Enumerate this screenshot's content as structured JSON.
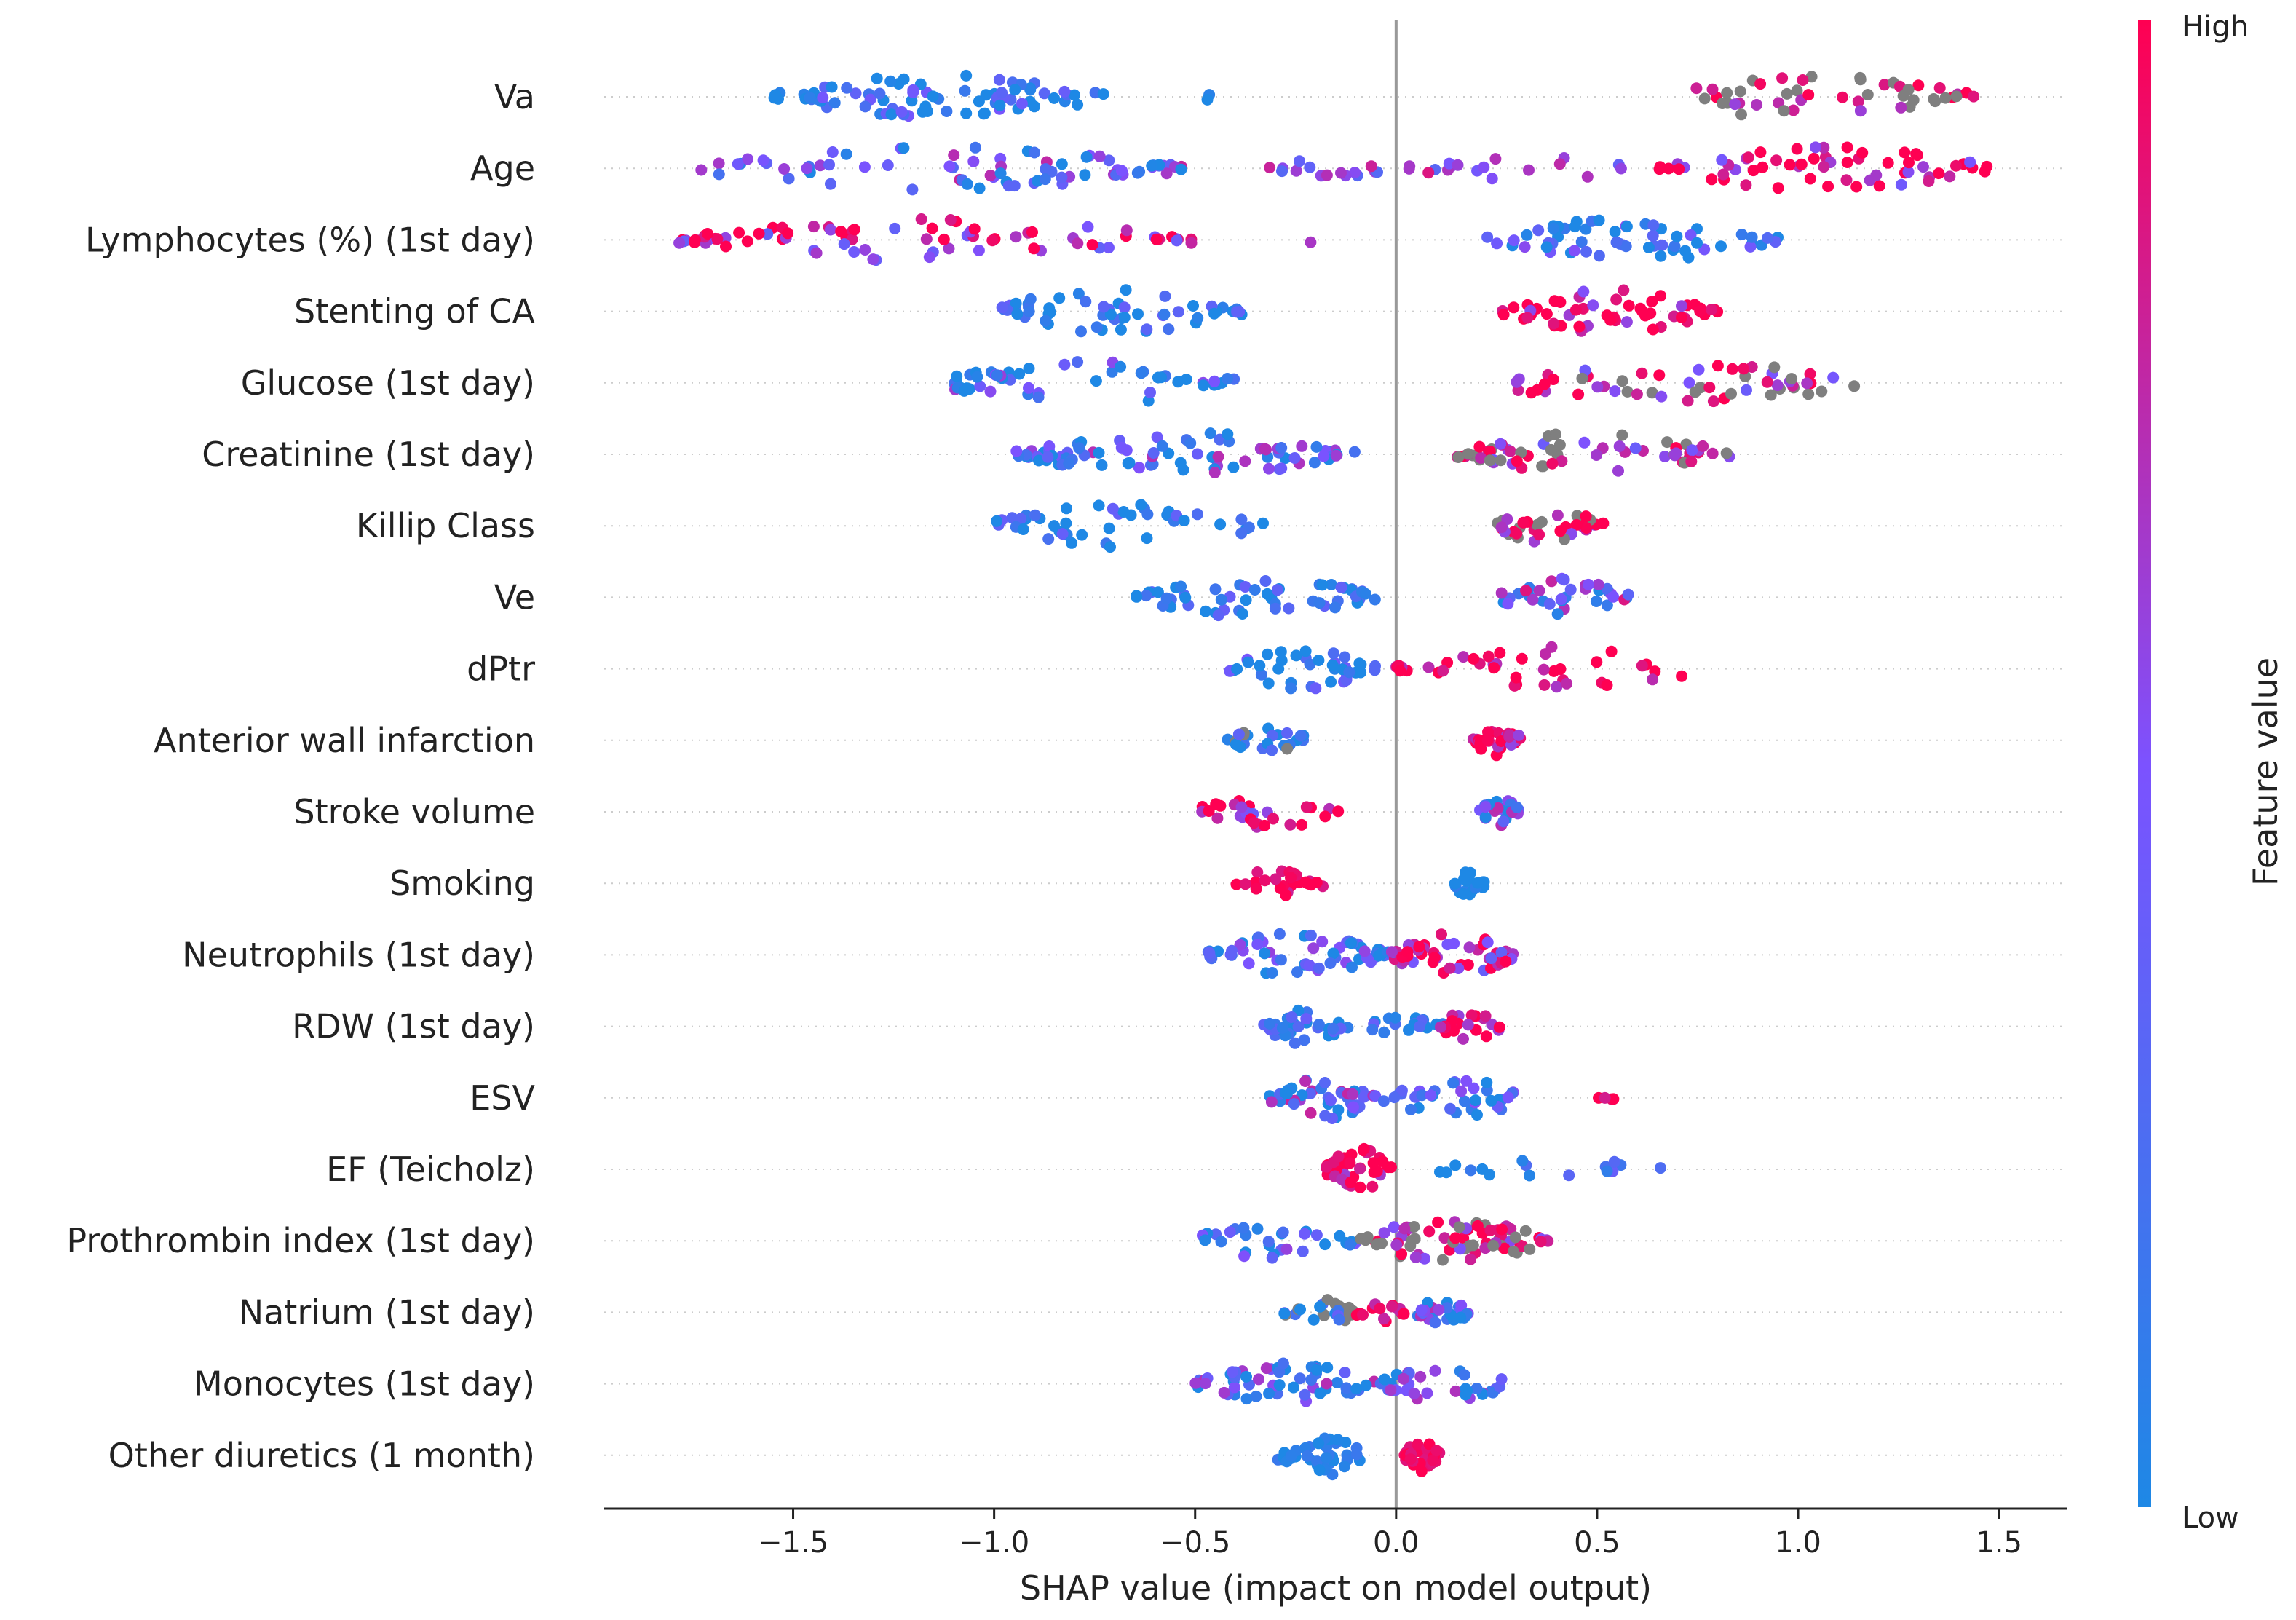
{
  "chart_data": {
    "type": "scatter",
    "subtype": "shap-beeswarm-summary",
    "xlabel": "SHAP value (impact on model output)",
    "xlim": [
      -1.97,
      1.67
    ],
    "xticks": [
      {
        "value": -1.5,
        "label": "−1.5"
      },
      {
        "value": -1.0,
        "label": "−1.0"
      },
      {
        "value": -0.5,
        "label": "−0.5"
      },
      {
        "value": 0.0,
        "label": "0.0"
      },
      {
        "value": 0.5,
        "label": "0.5"
      },
      {
        "value": 1.0,
        "label": "1.0"
      },
      {
        "value": 1.5,
        "label": "1.5"
      }
    ],
    "zero_line": 0,
    "colorbar": {
      "title": "Feature value",
      "high_label": "High",
      "low_label": "Low",
      "low_color": "#1e88e5",
      "high_color": "#ff0052",
      "missing_color": "#7f7f7f"
    },
    "features": [
      {
        "name": "Va",
        "clusters": [
          {
            "lo": -1.55,
            "hi": -0.72,
            "v": 0.02,
            "n": 80,
            "c": "b",
            "spread": 0.45
          },
          {
            "lo": -0.5,
            "hi": -0.46,
            "v": 0.0,
            "n": 2,
            "c": "b"
          },
          {
            "lo": 0.62,
            "hi": 1.44,
            "v": 0.85,
            "n": 48,
            "c": "gp",
            "spread": 0.25
          }
        ]
      },
      {
        "name": "Age",
        "clusters": [
          {
            "lo": -1.8,
            "hi": -0.52,
            "v": 0.35,
            "n": 75,
            "c": "m",
            "spread": 0.45
          },
          {
            "lo": -0.32,
            "hi": -0.02,
            "v": 0.5,
            "n": 15,
            "c": "m"
          },
          {
            "lo": 0.02,
            "hi": 0.62,
            "v": 0.6,
            "n": 18,
            "c": "m"
          },
          {
            "lo": 0.65,
            "hi": 1.48,
            "v": 0.92,
            "n": 60,
            "c": "p",
            "spread": 0.5
          }
        ]
      },
      {
        "name": "Lymphocytes (%) (1st day)",
        "clusters": [
          {
            "lo": -1.8,
            "hi": -0.5,
            "v": 0.85,
            "n": 80,
            "c": "p",
            "spread": 0.5
          },
          {
            "lo": -0.25,
            "hi": -0.2,
            "v": 0.7,
            "n": 1,
            "c": "p"
          },
          {
            "lo": 0.22,
            "hi": 0.95,
            "v": 0.12,
            "n": 60,
            "c": "b",
            "spread": 0.45
          }
        ]
      },
      {
        "name": "Stenting of CA",
        "clusters": [
          {
            "lo": -1.02,
            "hi": -0.38,
            "v": 0.0,
            "n": 55,
            "c": "b",
            "spread": 0.4
          },
          {
            "lo": 0.26,
            "hi": 0.8,
            "v": 1.0,
            "n": 55,
            "c": "p",
            "spread": 0.5
          }
        ]
      },
      {
        "name": "Glucose (1st day)",
        "clusters": [
          {
            "lo": -1.15,
            "hi": -0.38,
            "v": 0.2,
            "n": 50,
            "c": "b",
            "spread": 0.45
          },
          {
            "lo": 0.22,
            "hi": 1.18,
            "v": 0.75,
            "n": 55,
            "c": "gp",
            "spread": 0.35
          }
        ]
      },
      {
        "name": "Creatinine (1st day)",
        "clusters": [
          {
            "lo": -0.95,
            "hi": -0.1,
            "v": 0.25,
            "n": 85,
            "c": "b",
            "spread": 0.5
          },
          {
            "lo": 0.15,
            "hi": 0.83,
            "v": 0.75,
            "n": 65,
            "c": "gp",
            "spread": 0.35
          }
        ]
      },
      {
        "name": "Killip Class",
        "clusters": [
          {
            "lo": -1.02,
            "hi": -0.32,
            "v": 0.02,
            "n": 45,
            "c": "b",
            "spread": 0.4
          },
          {
            "lo": 0.25,
            "hi": 0.52,
            "v": 0.9,
            "n": 35,
            "c": "gp",
            "spread": 0.35
          }
        ]
      },
      {
        "name": "Ve",
        "clusters": [
          {
            "lo": -0.65,
            "hi": -0.05,
            "v": 0.05,
            "n": 55,
            "c": "b",
            "spread": 0.4
          },
          {
            "lo": 0.25,
            "hi": 0.58,
            "v": 0.4,
            "n": 35,
            "c": "m",
            "spread": 0.5
          }
        ]
      },
      {
        "name": "dPtr",
        "clusters": [
          {
            "lo": -0.42,
            "hi": -0.05,
            "v": 0.1,
            "n": 40,
            "c": "b",
            "spread": 0.4
          },
          {
            "lo": 0.0,
            "hi": 0.78,
            "v": 0.92,
            "n": 40,
            "c": "p",
            "spread": 0.3
          }
        ]
      },
      {
        "name": "Anterior wall infarction",
        "clusters": [
          {
            "lo": -0.42,
            "hi": -0.22,
            "v": 0.0,
            "n": 25,
            "c": "gb",
            "spread": 0.4
          },
          {
            "lo": 0.19,
            "hi": 0.32,
            "v": 0.85,
            "n": 30,
            "c": "p",
            "spread": 0.3
          }
        ]
      },
      {
        "name": "Stroke volume",
        "clusters": [
          {
            "lo": -0.5,
            "hi": -0.13,
            "v": 0.8,
            "n": 30,
            "c": "p",
            "spread": 0.4
          },
          {
            "lo": 0.2,
            "hi": 0.31,
            "v": 0.3,
            "n": 25,
            "c": "m",
            "spread": 0.5
          }
        ]
      },
      {
        "name": "Smoking",
        "clusters": [
          {
            "lo": -0.4,
            "hi": -0.18,
            "v": 1.0,
            "n": 25,
            "c": "p",
            "spread": 0.2
          },
          {
            "lo": 0.13,
            "hi": 0.22,
            "v": 0.0,
            "n": 20,
            "c": "b",
            "spread": 0.1
          }
        ]
      },
      {
        "name": "Neutrophils (1st day)",
        "clusters": [
          {
            "lo": -0.48,
            "hi": -0.02,
            "v": 0.2,
            "n": 60,
            "c": "b",
            "spread": 0.45
          },
          {
            "lo": -0.02,
            "hi": 0.3,
            "v": 0.8,
            "n": 50,
            "c": "p",
            "spread": 0.45
          }
        ]
      },
      {
        "name": "RDW (1st day)",
        "clusters": [
          {
            "lo": -0.33,
            "hi": -0.12,
            "v": 0.1,
            "n": 35,
            "c": "b",
            "spread": 0.3
          },
          {
            "lo": -0.08,
            "hi": 0.12,
            "v": 0.15,
            "n": 20,
            "c": "b",
            "spread": 0.3
          },
          {
            "lo": 0.1,
            "hi": 0.26,
            "v": 0.85,
            "n": 25,
            "c": "p",
            "spread": 0.3
          }
        ]
      },
      {
        "name": "ESV",
        "clusters": [
          {
            "lo": -0.32,
            "hi": -0.05,
            "v": 0.3,
            "n": 45,
            "c": "m",
            "spread": 0.5
          },
          {
            "lo": -0.05,
            "hi": 0.35,
            "v": 0.15,
            "n": 35,
            "c": "b",
            "spread": 0.4
          },
          {
            "lo": 0.5,
            "hi": 0.55,
            "v": 0.95,
            "n": 4,
            "c": "p"
          }
        ]
      },
      {
        "name": "EF (Teicholz)",
        "clusters": [
          {
            "lo": -0.18,
            "hi": -0.01,
            "v": 0.9,
            "n": 40,
            "c": "p",
            "spread": 0.3
          },
          {
            "lo": 0.1,
            "hi": 0.67,
            "v": 0.1,
            "n": 16,
            "c": "b",
            "spread": 0.3
          }
        ]
      },
      {
        "name": "Prothrombin index (1st day)",
        "clusters": [
          {
            "lo": -0.52,
            "hi": -0.1,
            "v": 0.2,
            "n": 30,
            "c": "b",
            "spread": 0.4
          },
          {
            "lo": -0.1,
            "hi": 0.38,
            "v": 0.85,
            "n": 75,
            "c": "gp",
            "spread": 0.35
          }
        ]
      },
      {
        "name": "Natrium (1st day)",
        "clusters": [
          {
            "lo": -0.28,
            "hi": -0.1,
            "v": 0.0,
            "n": 25,
            "c": "gb",
            "spread": 0.4
          },
          {
            "lo": -0.1,
            "hi": 0.02,
            "v": 0.95,
            "n": 15,
            "c": "p",
            "spread": 0.2
          },
          {
            "lo": 0.05,
            "hi": 0.18,
            "v": 0.3,
            "n": 25,
            "c": "m",
            "spread": 0.5
          }
        ]
      },
      {
        "name": "Monocytes (1st day)",
        "clusters": [
          {
            "lo": -0.5,
            "hi": -0.05,
            "v": 0.25,
            "n": 55,
            "c": "m",
            "spread": 0.5
          },
          {
            "lo": -0.05,
            "hi": 0.28,
            "v": 0.2,
            "n": 35,
            "c": "b",
            "spread": 0.5
          }
        ]
      },
      {
        "name": "Other diuretics (1 month)",
        "clusters": [
          {
            "lo": -0.3,
            "hi": -0.08,
            "v": 0.05,
            "n": 40,
            "c": "b",
            "spread": 0.1
          },
          {
            "lo": 0.02,
            "hi": 0.11,
            "v": 0.97,
            "n": 30,
            "c": "p",
            "spread": 0.1
          }
        ]
      }
    ]
  }
}
